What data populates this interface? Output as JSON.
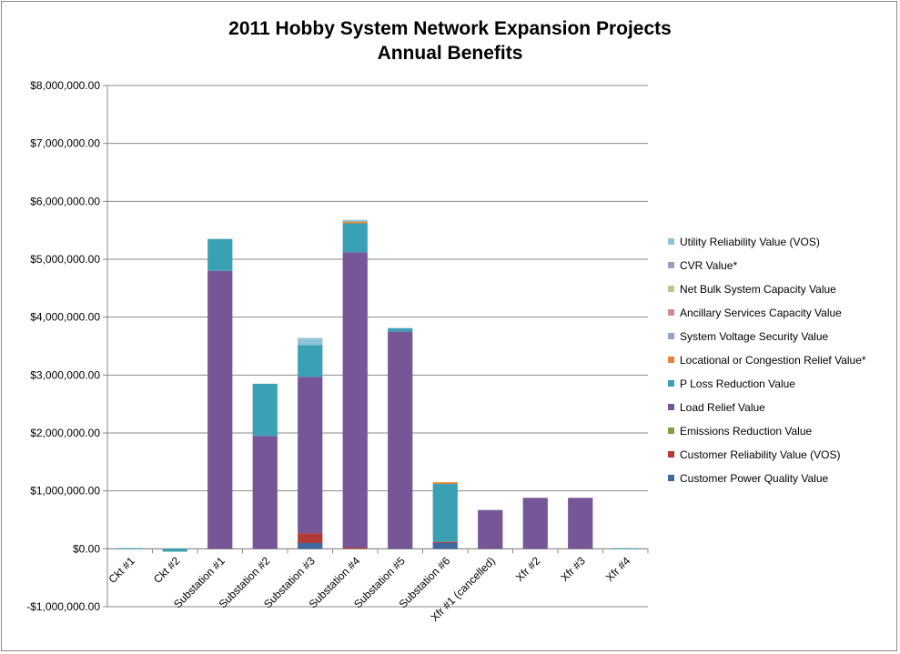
{
  "chart_data": {
    "type": "bar",
    "stacked": true,
    "title": "2011 Hobby System Network Expansion Projects",
    "subtitle": "Annual Benefits",
    "ylim": [
      -1000000,
      8000000
    ],
    "yticks": [
      -1000000,
      0,
      1000000,
      2000000,
      3000000,
      4000000,
      5000000,
      6000000,
      7000000,
      8000000
    ],
    "ytick_labels": [
      "-$1,000,000.00",
      "$0.00",
      "$1,000,000.00",
      "$2,000,000.00",
      "$3,000,000.00",
      "$4,000,000.00",
      "$5,000,000.00",
      "$6,000,000.00",
      "$7,000,000.00",
      "$8,000,000.00"
    ],
    "grid": true,
    "legend_position": "right",
    "categories": [
      "Ckt #1",
      "Ckt #2",
      "Substation #1",
      "Substation #2",
      "Substation #3",
      "Substation #4",
      "Substation #5",
      "Substation #6",
      "Xfr #1 (cancelled)",
      "Xfr #2",
      "Xfr #3",
      "Xfr #4"
    ],
    "series": [
      {
        "name": "Customer Power Quality Value",
        "color": "#3d68a0",
        "values": [
          0,
          0,
          0,
          0,
          100000,
          0,
          0,
          100000,
          0,
          0,
          0,
          0
        ]
      },
      {
        "name": "Customer Reliability Value (VOS)",
        "color": "#b23b37",
        "values": [
          0,
          0,
          0,
          0,
          170000,
          20000,
          0,
          20000,
          0,
          0,
          0,
          0
        ]
      },
      {
        "name": "Emissions Reduction Value",
        "color": "#7ea241",
        "values": [
          0,
          0,
          0,
          0,
          0,
          0,
          0,
          0,
          0,
          0,
          0,
          0
        ]
      },
      {
        "name": "Load Relief Value",
        "color": "#765696",
        "values": [
          0,
          0,
          4800000,
          1950000,
          2700000,
          5100000,
          3750000,
          0,
          670000,
          880000,
          880000,
          0
        ]
      },
      {
        "name": "P Loss Reduction Value",
        "color": "#3aa0b4",
        "values": [
          10000,
          -50000,
          550000,
          900000,
          550000,
          500000,
          60000,
          1000000,
          0,
          0,
          0,
          8000
        ]
      },
      {
        "name": "Locational or Congestion Relief Value*",
        "color": "#e8853a",
        "values": [
          0,
          0,
          0,
          0,
          0,
          30000,
          0,
          30000,
          0,
          0,
          0,
          0
        ]
      },
      {
        "name": "System Voltage Security Value",
        "color": "#8ea5c8",
        "values": [
          0,
          0,
          0,
          0,
          0,
          0,
          0,
          0,
          0,
          0,
          0,
          0
        ]
      },
      {
        "name": "Ancillary Services Capacity Value",
        "color": "#d48c8a",
        "values": [
          0,
          0,
          0,
          0,
          0,
          0,
          0,
          0,
          0,
          0,
          0,
          0
        ]
      },
      {
        "name": "Net Bulk System Capacity Value",
        "color": "#b4cc8e",
        "values": [
          0,
          0,
          0,
          0,
          0,
          0,
          0,
          0,
          0,
          0,
          0,
          0
        ]
      },
      {
        "name": "CVR Value*",
        "color": "#a597bf",
        "values": [
          0,
          0,
          0,
          0,
          0,
          0,
          0,
          0,
          0,
          0,
          0,
          0
        ]
      },
      {
        "name": "Utility Reliability Value (VOS)",
        "color": "#8ec4d6",
        "values": [
          0,
          0,
          0,
          0,
          120000,
          30000,
          0,
          0,
          0,
          0,
          0,
          0
        ]
      }
    ],
    "legend_order": [
      "Utility Reliability Value (VOS)",
      "CVR Value*",
      "Net Bulk System Capacity Value",
      "Ancillary Services Capacity Value",
      "System Voltage Security Value",
      "Locational or Congestion Relief Value*",
      "P Loss Reduction Value",
      "Load Relief Value",
      "Emissions Reduction Value",
      "Customer Reliability Value (VOS)",
      "Customer Power Quality Value"
    ]
  }
}
